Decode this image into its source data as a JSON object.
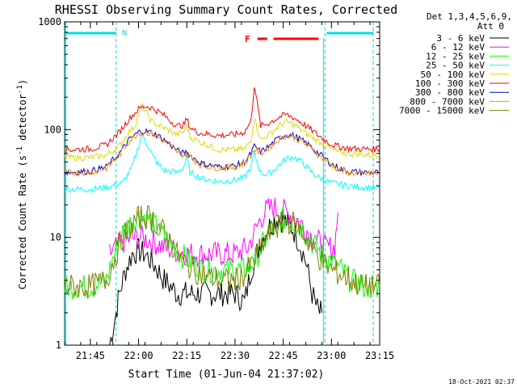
{
  "chart_data": {
    "type": "line",
    "title": "RHESSI Observing Summary Count Rates, Corrected",
    "xlabel": "Start Time (01-Jun-04 21:37:02)",
    "ylabel_main": "Corrected Count Rate (s",
    "ylabel_sup1": "-1",
    "ylabel_mid": " detector",
    "ylabel_sup2": "-1",
    "ylabel_end": ")",
    "yscale": "log",
    "ylim": [
      1,
      1000
    ],
    "xlim_minutes": [
      -23,
      75
    ],
    "ytick_labels": [
      "1",
      "10",
      "100",
      "1000"
    ],
    "ytick_values": [
      1,
      10,
      100,
      1000
    ],
    "xtick_labels": [
      "21:45",
      "22:00",
      "22:15",
      "22:30",
      "22:45",
      "23:00",
      "23:15"
    ],
    "xtick_values_minutes": [
      -15,
      0,
      15,
      30,
      45,
      60,
      75
    ],
    "legend_header1": "Det 1,3,4,5,6,9,",
    "legend_header2": "Att 0",
    "timestamp": "18-Oct-2021 02:37",
    "annotations": {
      "night_label": "N",
      "flare_label": "F"
    },
    "shading": {
      "night_bars_minutes": [
        [
          -23,
          -7
        ],
        [
          58,
          73
        ]
      ],
      "night_lines_minutes": [
        -7,
        58,
        73
      ],
      "flare_segments_minutes": [
        [
          37,
          40
        ],
        [
          42,
          56
        ]
      ]
    },
    "series": [
      {
        "name": "3 - 6 keV",
        "color": "#000000",
        "x": [
          -9,
          -7,
          -6,
          -4,
          -2,
          0,
          2,
          4,
          6,
          8,
          10,
          12,
          15,
          20,
          25,
          30,
          33,
          35,
          38,
          40,
          43,
          46,
          48,
          50,
          52,
          54,
          56,
          57
        ],
        "y": [
          1,
          2,
          3,
          5,
          7,
          7.5,
          7,
          6,
          5,
          4,
          3.5,
          3,
          3,
          3,
          3,
          3,
          2.5,
          5,
          9,
          12,
          15,
          14,
          12,
          9,
          6,
          3,
          2,
          2
        ]
      },
      {
        "name": "6 - 12 keV",
        "color": "#ff00ff",
        "x": [
          -9,
          -7,
          -5,
          -3,
          -1,
          1,
          3,
          5,
          8,
          12,
          16,
          20,
          25,
          30,
          34,
          36,
          38,
          40,
          42,
          44,
          46,
          48,
          50,
          52,
          54,
          56,
          58,
          60,
          61,
          62
        ],
        "y": [
          7,
          8,
          9,
          9.5,
          10,
          10,
          9.5,
          9,
          8,
          7.5,
          7,
          7,
          7,
          7,
          8,
          11,
          15,
          18,
          19,
          18,
          17,
          16,
          14,
          12,
          10,
          9,
          8,
          8,
          8,
          17
        ]
      },
      {
        "name": "12 - 25 keV",
        "color": "#00ff00",
        "x": [
          -23,
          -15,
          -10,
          -7,
          -5,
          -3,
          -1,
          1,
          3,
          5,
          7,
          10,
          13,
          16,
          20,
          25,
          30,
          33,
          36,
          39,
          42,
          45,
          48,
          51,
          54,
          57,
          60,
          63,
          66,
          70,
          75
        ],
        "y": [
          3.5,
          3.5,
          4,
          8,
          11,
          13,
          15,
          16,
          15,
          13,
          11,
          9,
          7,
          6,
          5,
          5,
          5,
          5,
          6,
          9,
          13,
          15,
          14,
          12,
          9,
          7,
          6,
          5,
          4,
          3.5,
          3.5
        ]
      },
      {
        "name": "25 - 50 keV",
        "color": "#00ffff",
        "x": [
          -23,
          -15,
          -10,
          -5,
          -2,
          0,
          1,
          2,
          4,
          6,
          8,
          12,
          14,
          15,
          16,
          20,
          25,
          30,
          33,
          35,
          36,
          38,
          40,
          42,
          44,
          46,
          48,
          50,
          52,
          54,
          56,
          58,
          60,
          65,
          70,
          75
        ],
        "y": [
          28,
          28,
          29,
          32,
          45,
          70,
          90,
          80,
          60,
          48,
          42,
          40,
          45,
          55,
          40,
          35,
          33,
          34,
          36,
          45,
          60,
          40,
          38,
          42,
          48,
          54,
          56,
          52,
          46,
          40,
          36,
          34,
          32,
          30,
          29,
          29
        ]
      },
      {
        "name": "50 - 100 keV",
        "color": "#dddd00",
        "x": [
          -23,
          -15,
          -10,
          -6,
          -3,
          -1,
          0,
          1,
          2,
          4,
          6,
          9,
          12,
          14,
          15,
          16,
          20,
          25,
          30,
          33,
          35,
          36,
          38,
          40,
          42,
          44,
          46,
          48,
          50,
          52,
          54,
          56,
          58,
          60,
          62,
          65,
          70,
          75
        ],
        "y": [
          55,
          55,
          58,
          70,
          95,
          110,
          140,
          170,
          150,
          120,
          110,
          100,
          90,
          95,
          110,
          85,
          75,
          65,
          65,
          66,
          80,
          130,
          80,
          88,
          98,
          110,
          118,
          112,
          102,
          92,
          85,
          78,
          72,
          66,
          62,
          60,
          59,
          58
        ]
      },
      {
        "name": "100 - 300 keV",
        "color": "#ff0000",
        "x": [
          -23,
          -15,
          -10,
          -6,
          -3,
          0,
          2,
          4,
          6,
          8,
          10,
          12,
          14,
          15,
          16,
          18,
          20,
          25,
          30,
          33,
          35,
          36,
          38,
          40,
          42,
          44,
          46,
          48,
          50,
          52,
          54,
          56,
          58,
          60,
          62,
          65,
          70,
          75
        ],
        "y": [
          65,
          66,
          72,
          95,
          125,
          155,
          165,
          160,
          148,
          135,
          120,
          108,
          110,
          125,
          105,
          95,
          92,
          88,
          90,
          95,
          120,
          260,
          108,
          113,
          122,
          132,
          138,
          130,
          120,
          108,
          98,
          88,
          80,
          73,
          70,
          67,
          66,
          66
        ]
      },
      {
        "name": "300 - 800 keV",
        "color": "#0000cc",
        "x": [
          -23,
          -15,
          -10,
          -6,
          -3,
          0,
          2,
          4,
          6,
          8,
          10,
          12,
          14,
          15,
          16,
          18,
          20,
          25,
          30,
          33,
          35,
          36,
          38,
          40,
          42,
          44,
          46,
          48,
          50,
          52,
          54,
          56,
          58,
          60,
          62,
          65,
          70,
          75
        ],
        "y": [
          40,
          41,
          45,
          60,
          80,
          95,
          97,
          94,
          88,
          80,
          72,
          64,
          60,
          62,
          58,
          52,
          48,
          45,
          46,
          50,
          60,
          70,
          62,
          68,
          76,
          85,
          90,
          88,
          82,
          75,
          68,
          60,
          54,
          48,
          44,
          41,
          40,
          40
        ]
      },
      {
        "name": "800 - 7000 keV",
        "color": "#ff8c00",
        "x": [
          -23,
          -15,
          -10,
          -6,
          -3,
          0,
          2,
          4,
          6,
          8,
          10,
          12,
          14,
          15,
          16,
          18,
          20,
          25,
          30,
          33,
          35,
          36,
          38,
          40,
          42,
          44,
          46,
          48,
          50,
          52,
          54,
          56,
          58,
          60,
          62,
          65,
          70,
          75
        ],
        "y": [
          40,
          40,
          44,
          58,
          78,
          93,
          95,
          92,
          86,
          78,
          70,
          62,
          58,
          60,
          56,
          50,
          46,
          44,
          45,
          49,
          58,
          66,
          60,
          66,
          74,
          83,
          88,
          86,
          80,
          73,
          66,
          58,
          52,
          47,
          43,
          40,
          39,
          39
        ]
      },
      {
        "name": "7000 - 15000 keV",
        "color": "#808000",
        "x": [
          -23,
          -15,
          -10,
          -7,
          -5,
          -3,
          -1,
          0,
          2,
          4,
          6,
          9,
          12,
          15,
          20,
          25,
          30,
          33,
          36,
          38,
          40,
          42,
          44,
          46,
          48,
          50,
          52,
          54,
          57,
          60,
          63,
          66,
          70,
          75
        ],
        "y": [
          3.5,
          3.5,
          4,
          7,
          10,
          12,
          14,
          15,
          16,
          15,
          13,
          10,
          7,
          5.5,
          4.5,
          4,
          4,
          4.5,
          6,
          8,
          10,
          12,
          13,
          14,
          13.5,
          12,
          10,
          8,
          6,
          5,
          4.5,
          4,
          3.5,
          3.5
        ]
      }
    ]
  }
}
